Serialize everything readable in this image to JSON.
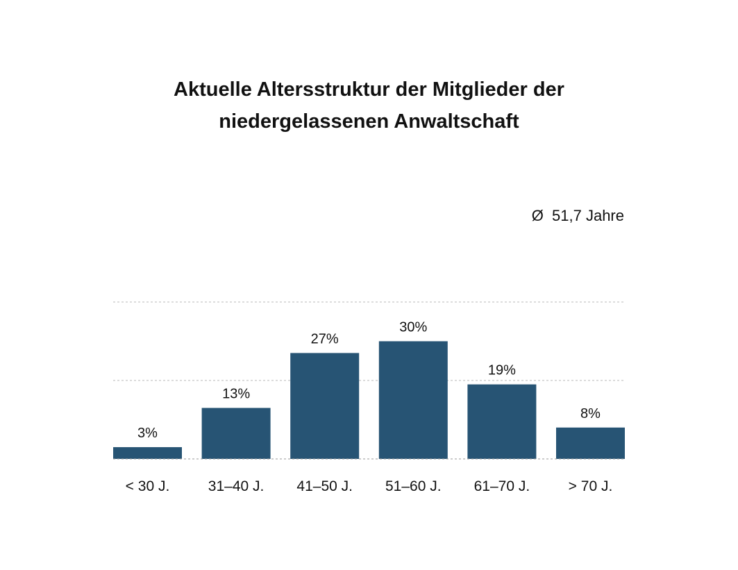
{
  "chart_data": {
    "type": "bar",
    "title": [
      "Aktuelle Altersstruktur der Mitglieder der",
      "niedergelassenen Anwaltschaft"
    ],
    "annotation": "Ø  51,7 Jahre",
    "categories": [
      "< 30 J.",
      "31–40 J.",
      "41–50 J.",
      "51–60 J.",
      "61–70 J.",
      "> 70 J."
    ],
    "values": [
      3,
      13,
      27,
      30,
      19,
      8
    ],
    "value_labels": [
      "3%",
      "13%",
      "27%",
      "30%",
      "19%",
      "8%"
    ],
    "ylim": [
      0,
      40
    ],
    "grid_values": [
      20,
      40
    ],
    "grid": true,
    "colors": {
      "bar": "#275474",
      "grid": "#b9b9b9",
      "baseline": "#9a9a9a",
      "text": "#111111"
    }
  }
}
